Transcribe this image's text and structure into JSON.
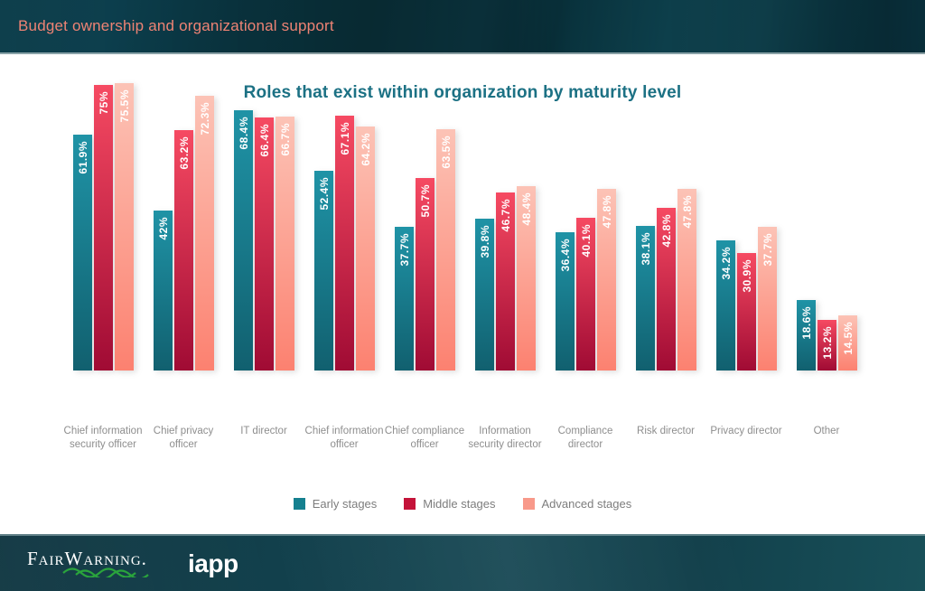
{
  "header": {
    "title": "Budget ownership and organizational support",
    "text_color": "#ee8374"
  },
  "chart_data": {
    "type": "bar",
    "title": "Roles that exist within organization by maturity level",
    "title_color": "#1c7184",
    "categories": [
      "Chief information security officer",
      "Chief privacy officer",
      "IT director",
      "Chief information officer",
      "Chief compliance officer",
      "Information security director",
      "Compliance director",
      "Risk director",
      "Privacy director",
      "Other"
    ],
    "series": [
      {
        "name": "Early stages",
        "values": [
          61.9,
          42,
          68.4,
          52.4,
          37.7,
          39.8,
          36.4,
          38.1,
          34.2,
          18.6
        ],
        "gradient_top": "#1f93a6",
        "gradient_bottom": "#11606f",
        "legend_color": "#15808f"
      },
      {
        "name": "Middle stages",
        "values": [
          75,
          63.2,
          66.4,
          67.1,
          50.7,
          46.7,
          40.1,
          42.8,
          30.9,
          13.2
        ],
        "gradient_top": "#f64a62",
        "gradient_bottom": "#a00b34",
        "legend_color": "#c41339"
      },
      {
        "name": "Advanced stages",
        "values": [
          75.5,
          72.3,
          66.7,
          64.2,
          63.5,
          48.4,
          47.8,
          47.8,
          37.7,
          14.5
        ],
        "gradient_top": "#fcc3b6",
        "gradient_bottom": "#fc8170",
        "legend_color": "#f8998a"
      }
    ],
    "value_suffix": "%",
    "ylim": [
      0,
      80
    ],
    "grid": false,
    "legend_position": "bottom",
    "value_labels": "rotated-white-inside-top",
    "category_label_color": "#8e8e8e"
  },
  "footer": {
    "brand_primary": "FairWarning.",
    "brand_secondary": "iapp",
    "wave_color": "#2aa43c"
  }
}
